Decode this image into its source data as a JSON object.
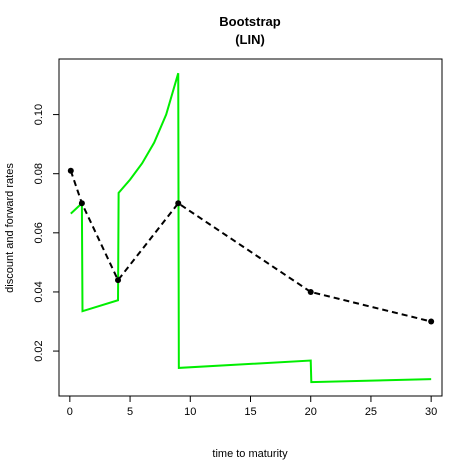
{
  "chart_data": {
    "type": "line",
    "title": "Bootstrap",
    "subtitle": "(LIN)",
    "xlabel": "time to maturity",
    "ylabel": "discount and forward rates",
    "xlim": [
      -0.9,
      30.9
    ],
    "ylim": [
      0.0048,
      0.1188
    ],
    "x_ticks": [
      0,
      5,
      10,
      15,
      20,
      25,
      30
    ],
    "y_ticks": [
      0.02,
      0.04,
      0.06,
      0.08,
      0.1
    ],
    "y_tick_labels": [
      "0.02",
      "0.04",
      "0.06",
      "0.08",
      "0.10"
    ],
    "grid": false,
    "legend": "none",
    "series": [
      {
        "style": "dashed",
        "color": "#000000",
        "markers": true,
        "points": [
          {
            "x": 0.08,
            "y": 0.081
          },
          {
            "x": 1,
            "y": 0.07
          },
          {
            "x": 4,
            "y": 0.044
          },
          {
            "x": 9,
            "y": 0.07
          },
          {
            "x": 20,
            "y": 0.04
          },
          {
            "x": 30,
            "y": 0.03
          }
        ]
      },
      {
        "style": "solid",
        "color": "#00ee00",
        "markers": false,
        "points": [
          {
            "x": 0.08,
            "y": 0.0665
          },
          {
            "x": 1,
            "y": 0.07
          },
          {
            "x": 1.05,
            "y": 0.0335
          },
          {
            "x": 4,
            "y": 0.0372
          },
          {
            "x": 4.05,
            "y": 0.0735
          },
          {
            "x": 5,
            "y": 0.078
          },
          {
            "x": 6,
            "y": 0.0835
          },
          {
            "x": 7,
            "y": 0.0905
          },
          {
            "x": 8,
            "y": 0.1
          },
          {
            "x": 9,
            "y": 0.114
          },
          {
            "x": 9.05,
            "y": 0.0143
          },
          {
            "x": 20,
            "y": 0.0168
          },
          {
            "x": 20.05,
            "y": 0.0095
          },
          {
            "x": 30,
            "y": 0.0105
          }
        ]
      }
    ]
  }
}
